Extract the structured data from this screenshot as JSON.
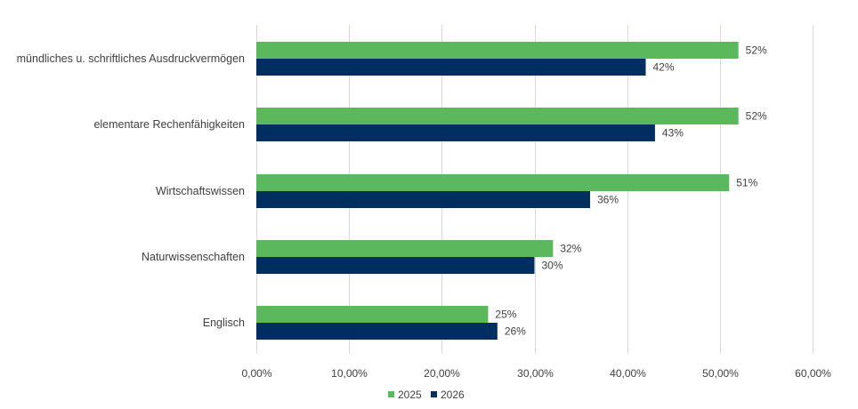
{
  "chart_data": {
    "type": "bar",
    "orientation": "horizontal",
    "title": "",
    "xlabel": "",
    "ylabel": "",
    "categories": [
      "mündliches u. schriftliches Ausdruckvermögen",
      "elementare Rechenfähigkeiten",
      "Wirtschaftswissen",
      "Naturwissenschaften",
      "Englisch"
    ],
    "series": [
      {
        "name": "2025",
        "color": "#5cb85c",
        "values": [
          0.52,
          0.52,
          0.51,
          0.32,
          0.25
        ],
        "labels": [
          "52%",
          "52%",
          "51%",
          "32%",
          "25%"
        ]
      },
      {
        "name": "2026",
        "color": "#002f5f",
        "values": [
          0.42,
          0.43,
          0.36,
          0.3,
          0.26
        ],
        "labels": [
          "42%",
          "43%",
          "36%",
          "30%",
          "26%"
        ]
      }
    ],
    "xlim": [
      0,
      0.6
    ],
    "xticks": [
      0,
      0.1,
      0.2,
      0.3,
      0.4,
      0.5,
      0.6
    ],
    "xtick_labels": [
      "0,00%",
      "10,00%",
      "20,00%",
      "30,00%",
      "40,00%",
      "50,00%",
      "60,00%"
    ],
    "grid": "vertical",
    "legend_position": "bottom"
  }
}
